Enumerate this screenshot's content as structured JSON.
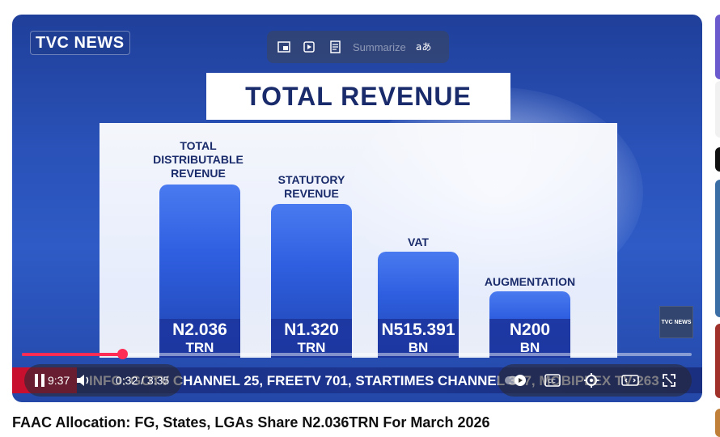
{
  "player": {
    "channel_logo": "TVC NEWS",
    "overlay_tools": {
      "summarize_label": "Summarize"
    },
    "slide": {
      "title": "TOTAL REVENUE",
      "bars": [
        {
          "label_lines": [
            "TOTAL",
            "DISTRIBUTABLE",
            "REVENUE"
          ],
          "value_line1": "N2.036",
          "value_line2": "TRN"
        },
        {
          "label_lines": [
            "STATUTORY",
            "REVENUE"
          ],
          "value_line1": "N1.320",
          "value_line2": "TRN"
        },
        {
          "label_lines": [
            "VAT"
          ],
          "value_line1": "N515.391",
          "value_line2": "BN"
        },
        {
          "label_lines": [
            "AUGMENTATION"
          ],
          "value_line1": "N200",
          "value_line2": "BN"
        }
      ]
    },
    "corner_logo": "TVC NEWS",
    "ticker_text": "INFO: GOTV CHANNEL 25, FREETV 701, STARTIMES CHANNEL 307, MOBIPLEX TV 263",
    "clock": "9:37",
    "time_display": "0:32 / 3:35",
    "progress_fraction": 0.15
  },
  "video_title": "FAAC Allocation: FG, States, LGAs Share N2.036TRN For March 2026",
  "colors": {
    "progress": "#ff2d55",
    "ticker_bg": "#1d3590",
    "ticker_red": "#c8102e",
    "title_text": "#1a2b6b"
  }
}
